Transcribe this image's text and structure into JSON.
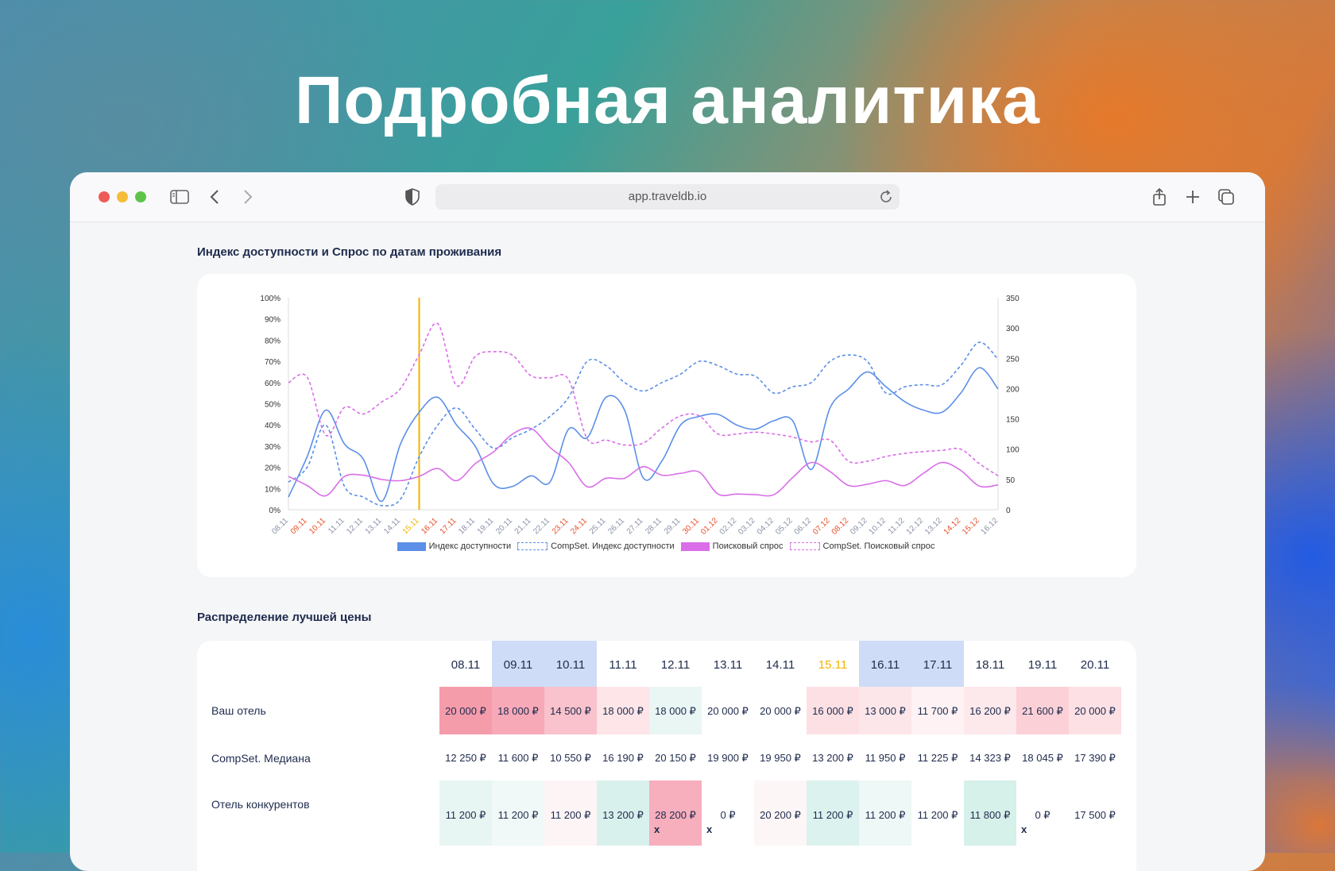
{
  "hero": {
    "title": "Подробная аналитика"
  },
  "browser": {
    "url": "app.traveldb.io",
    "icons": [
      "sidebar-icon",
      "back-icon",
      "forward-icon",
      "shield-icon",
      "reload-icon",
      "share-icon",
      "new-tab-icon",
      "tabs-icon"
    ]
  },
  "chart_section": {
    "title": "Индекс доступности и Спрос по датам проживания"
  },
  "table_section": {
    "title": "Распределение лучшей цены"
  },
  "chart_data": {
    "type": "line",
    "x": [
      "08.11",
      "09.11",
      "10.11",
      "11.11",
      "12.11",
      "13.11",
      "14.11",
      "15.11",
      "16.11",
      "17.11",
      "18.11",
      "19.11",
      "20.11",
      "21.11",
      "22.11",
      "23.11",
      "24.11",
      "25.11",
      "26.11",
      "27.11",
      "28.11",
      "29.11",
      "30.11",
      "01.12",
      "02.12",
      "03.12",
      "04.12",
      "05.12",
      "06.12",
      "07.12",
      "08.12",
      "09.12",
      "10.12",
      "11.12",
      "12.12",
      "13.12",
      "14.12",
      "15.12",
      "16.12"
    ],
    "x_highlight": {
      "15.11": "#f0b400",
      "09.11": "#e8502a",
      "10.11": "#e8502a",
      "16.11": "#e8502a",
      "17.11": "#e8502a",
      "23.11": "#e8502a",
      "24.11": "#e8502a",
      "30.11": "#e8502a",
      "01.12": "#e8502a",
      "07.12": "#e8502a",
      "08.12": "#e8502a",
      "14.12": "#e8502a",
      "15.12": "#e8502a"
    },
    "y_left": {
      "ticks": [
        "0%",
        "10%",
        "20%",
        "30%",
        "40%",
        "50%",
        "60%",
        "70%",
        "80%",
        "90%",
        "100%"
      ],
      "range": [
        0,
        100
      ]
    },
    "y_right": {
      "ticks": [
        "0",
        "50",
        "100",
        "150",
        "200",
        "250",
        "300",
        "350"
      ],
      "range": [
        0,
        350
      ]
    },
    "marker_x": "15.11",
    "series": [
      {
        "name": "Индекс доступности",
        "axis": "left",
        "style": "solid",
        "color": "#5b8fe8",
        "values": [
          6,
          25,
          47,
          31,
          24,
          4,
          31,
          46,
          53,
          40,
          30,
          12,
          11,
          16,
          13,
          38,
          34,
          53,
          47,
          15,
          23,
          40,
          44,
          45,
          40,
          38,
          42,
          42,
          19,
          48,
          57,
          65,
          58,
          51,
          47,
          46,
          55,
          67,
          57
        ]
      },
      {
        "name": "CompSet. Индекс доступности",
        "axis": "left",
        "style": "dashed",
        "color": "#5b8fe8",
        "values": [
          13,
          20,
          40,
          11,
          6,
          2,
          5,
          25,
          40,
          48,
          38,
          29,
          34,
          38,
          44,
          53,
          70,
          68,
          60,
          56,
          60,
          64,
          70,
          68,
          64,
          63,
          55,
          58,
          60,
          70,
          73,
          70,
          55,
          58,
          59,
          59,
          68,
          79,
          71
        ]
      },
      {
        "name": "Поисковый спрос",
        "axis": "right",
        "style": "solid",
        "color": "#d96ee8",
        "values": [
          55,
          40,
          23,
          55,
          57,
          50,
          48,
          55,
          68,
          48,
          76,
          96,
          125,
          134,
          103,
          78,
          38,
          52,
          52,
          71,
          57,
          60,
          62,
          26,
          26,
          25,
          25,
          53,
          78,
          63,
          40,
          42,
          48,
          40,
          60,
          78,
          65,
          39,
          41
        ]
      },
      {
        "name": "CompSet. Поисковый спрос",
        "axis": "right",
        "style": "dashed",
        "color": "#d96ee8",
        "values": [
          210,
          219,
          123,
          169,
          158,
          178,
          200,
          256,
          307,
          205,
          253,
          261,
          255,
          221,
          218,
          215,
          117,
          115,
          107,
          110,
          135,
          155,
          155,
          125,
          125,
          128,
          125,
          120,
          112,
          115,
          80,
          80,
          88,
          93,
          96,
          98,
          100,
          76,
          56
        ]
      }
    ]
  },
  "price_table": {
    "dates": [
      "08.11",
      "09.11",
      "10.11",
      "11.11",
      "12.11",
      "13.11",
      "14.11",
      "15.11",
      "16.11",
      "17.11",
      "18.11",
      "19.11",
      "20.11"
    ],
    "header_highlight": [
      "#ffffff",
      "#cfdcf7",
      "#cfdcf7",
      "#ffffff",
      "#ffffff",
      "#ffffff",
      "#ffffff",
      "#ffffff",
      "#cfdcf7",
      "#cfdcf7",
      "#ffffff",
      "#ffffff",
      "#ffffff"
    ],
    "header_colors": [
      "#1f2b4d",
      "#1f2b4d",
      "#1f2b4d",
      "#1f2b4d",
      "#1f2b4d",
      "#1f2b4d",
      "#1f2b4d",
      "#f0b400",
      "#1f2b4d",
      "#1f2b4d",
      "#1f2b4d",
      "#1f2b4d",
      "#1f2b4d"
    ],
    "rows": [
      {
        "label": "Ваш отель",
        "values": [
          "20 000 ₽",
          "18 000 ₽",
          "14 500 ₽",
          "18 000 ₽",
          "18 000 ₽",
          "20 000 ₽",
          "20 000 ₽",
          "16 000 ₽",
          "13 000 ₽",
          "11 700 ₽",
          "16 200 ₽",
          "21 600 ₽",
          "20 000 ₽"
        ],
        "colors": [
          "#f59cab",
          "#f7a9b8",
          "#f9c2cc",
          "#fde5e8",
          "#e9f6f4",
          "#ffffff",
          "#ffffff",
          "#fde0e4",
          "#fde6e9",
          "#fef2f4",
          "#fde8eb",
          "#fbd0d7",
          "#fde0e4"
        ]
      },
      {
        "label": "CompSet. Медиана",
        "values": [
          "12 250 ₽",
          "11 600 ₽",
          "10 550 ₽",
          "16 190 ₽",
          "20 150 ₽",
          "19 900 ₽",
          "19 950 ₽",
          "13 200 ₽",
          "11 950 ₽",
          "11 225 ₽",
          "14 323 ₽",
          "18 045 ₽",
          "17 390 ₽"
        ],
        "colors": [
          "#ffffff",
          "#ffffff",
          "#ffffff",
          "#ffffff",
          "#ffffff",
          "#ffffff",
          "#ffffff",
          "#ffffff",
          "#ffffff",
          "#ffffff",
          "#ffffff",
          "#ffffff",
          "#ffffff"
        ]
      },
      {
        "label": "Отель конкурентов",
        "values": [
          "11 200 ₽",
          "11 200 ₽",
          "11 200 ₽",
          "13 200 ₽",
          "28 200 ₽",
          "0 ₽",
          "20 200 ₽",
          "11 200 ₽",
          "11 200 ₽",
          "11 200 ₽",
          "11 800 ₽",
          "0 ₽",
          "17 500 ₽"
        ],
        "marks": [
          "",
          "",
          "",
          "",
          "x",
          "x",
          "",
          "",
          "",
          "",
          "",
          "x",
          ""
        ],
        "colors": [
          "#e8f6f3",
          "#f0f9f7",
          "#fdf4f6",
          "#d9f1ec",
          "#f7aebd",
          "#ffffff",
          "#fdf6f7",
          "#dcf2ee",
          "#eef8f6",
          "#ffffff",
          "#d6f0ea",
          "#ffffff",
          "#ffffff"
        ]
      }
    ]
  }
}
